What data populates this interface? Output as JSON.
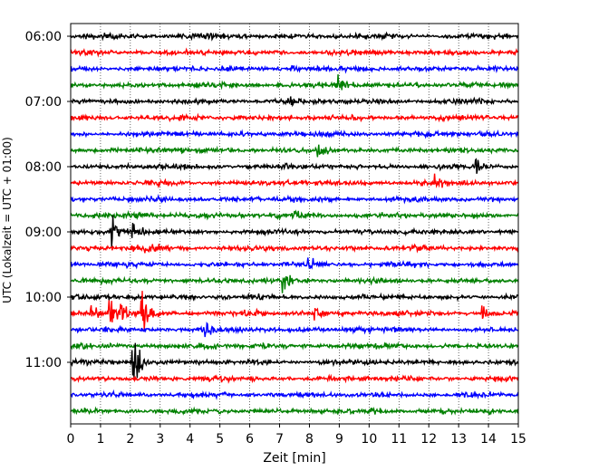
{
  "chart_data": {
    "type": "line",
    "xlabel": "Zeit  [min]",
    "ylabel": "UTC (Lokalzeit = UTC + 01:00)",
    "xlim": [
      0,
      15
    ],
    "x_ticks": [
      "0",
      "1",
      "2",
      "3",
      "4",
      "5",
      "6",
      "7",
      "8",
      "9",
      "10",
      "11",
      "12",
      "13",
      "14",
      "15"
    ],
    "y_ticks": [
      "06:00",
      "07:00",
      "08:00",
      "09:00",
      "10:00",
      "11:00"
    ],
    "grid": "vertical dotted",
    "trace_interval_min": 15,
    "start_time": "06:00",
    "trace_count": 24,
    "trace_colors": [
      "#000000",
      "#ff0000",
      "#0000ff",
      "#008000"
    ],
    "events": [
      {
        "trace": 12,
        "x": 1.4,
        "amp": 0.55
      },
      {
        "trace": 12,
        "x": 2.1,
        "amp": 0.45
      },
      {
        "trace": 13,
        "x": 2.5,
        "amp": 0.45
      },
      {
        "trace": 14,
        "x": 8.0,
        "amp": 0.25
      },
      {
        "trace": 15,
        "x": 7.1,
        "amp": 0.4
      },
      {
        "trace": 17,
        "x": 0.7,
        "amp": 0.5
      },
      {
        "trace": 17,
        "x": 1.3,
        "amp": 0.8
      },
      {
        "trace": 17,
        "x": 1.7,
        "amp": 0.8
      },
      {
        "trace": 17,
        "x": 2.4,
        "amp": 1.3
      },
      {
        "trace": 17,
        "x": 8.2,
        "amp": 0.3
      },
      {
        "trace": 17,
        "x": 13.8,
        "amp": 0.35
      },
      {
        "trace": 20,
        "x": 2.1,
        "amp": 1.6
      },
      {
        "trace": 8,
        "x": 13.6,
        "amp": 0.3
      },
      {
        "trace": 9,
        "x": 12.2,
        "amp": 0.35
      },
      {
        "trace": 7,
        "x": 8.3,
        "amp": 0.25
      },
      {
        "trace": 4,
        "x": 7.3,
        "amp": 0.25
      },
      {
        "trace": 2,
        "x": 7.4,
        "amp": 0.3
      },
      {
        "trace": 3,
        "x": 9.0,
        "amp": 0.3
      },
      {
        "trace": 11,
        "x": 7.5,
        "amp": 0.25
      },
      {
        "trace": 18,
        "x": 4.5,
        "amp": 0.3
      }
    ]
  }
}
